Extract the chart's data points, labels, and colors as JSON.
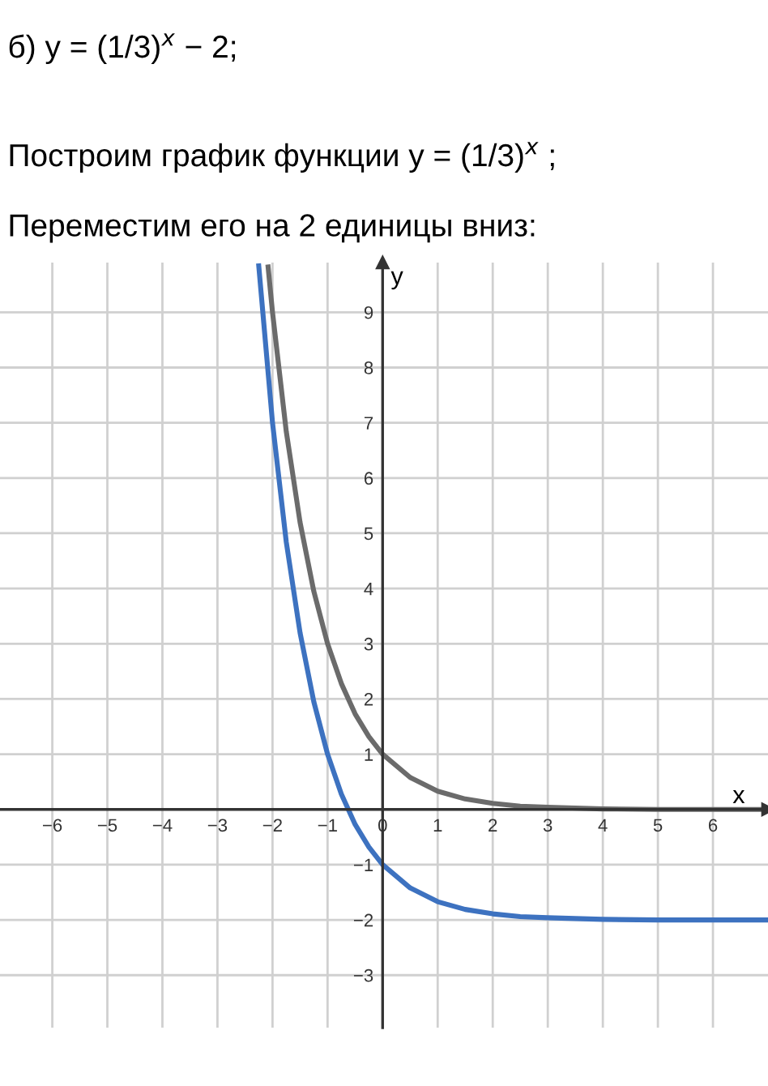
{
  "chart_data": {
    "type": "line",
    "title": "б) y = (1/3)$^{x}$ − 2;",
    "subtitle": "Построим график функции y = (1/3)$^{x}$ ;",
    "annotations": [
      "Переместим его на 2 единицы вниз:"
    ],
    "xlabel": "x",
    "ylabel": "y",
    "xlim": [
      -6.95,
      7
    ],
    "ylim": [
      -3.95,
      9.9
    ],
    "xticks": [
      {
        "value": -6,
        "label": "−6"
      },
      {
        "value": -5,
        "label": "−5"
      },
      {
        "value": -4,
        "label": "−4"
      },
      {
        "value": -3,
        "label": "−3"
      },
      {
        "value": -2,
        "label": "−2"
      },
      {
        "value": -1,
        "label": "−1"
      },
      0,
      1,
      2,
      3,
      4,
      5,
      6
    ],
    "yticks": [
      {
        "value": -3,
        "label": "−3"
      },
      {
        "value": -2,
        "label": "−2"
      },
      {
        "value": -1,
        "label": "−1"
      },
      1,
      2,
      3,
      4,
      5,
      6,
      7,
      8,
      9
    ],
    "grid": true,
    "legend": false,
    "series": [
      {
        "color": "#6b6b6b",
        "x": [
          -2.08,
          -2,
          -1.75,
          -1.5,
          -1.25,
          -1,
          -0.75,
          -0.5,
          -0.25,
          0,
          0.5,
          1,
          1.5,
          2,
          2.5,
          3,
          4,
          5,
          6,
          7
        ],
        "values": [
          9.82,
          9,
          6.84,
          5.2,
          3.95,
          3,
          2.28,
          1.73,
          1.32,
          1,
          0.58,
          0.33,
          0.19,
          0.11,
          0.06,
          0.04,
          0.01,
          0,
          0,
          0
        ]
      },
      {
        "color": "#3d72c0",
        "x": [
          -2.25,
          -2,
          -1.75,
          -1.5,
          -1.25,
          -1,
          -0.75,
          -0.5,
          -0.25,
          0,
          0.5,
          1,
          1.5,
          2,
          2.5,
          3,
          4,
          5,
          6,
          7
        ],
        "values": [
          9.84,
          7,
          4.84,
          3.2,
          1.95,
          1,
          0.28,
          -0.27,
          -0.68,
          -1,
          -1.42,
          -1.67,
          -1.81,
          -1.89,
          -1.94,
          -1.96,
          -1.99,
          -2,
          -2,
          -2
        ]
      }
    ]
  }
}
